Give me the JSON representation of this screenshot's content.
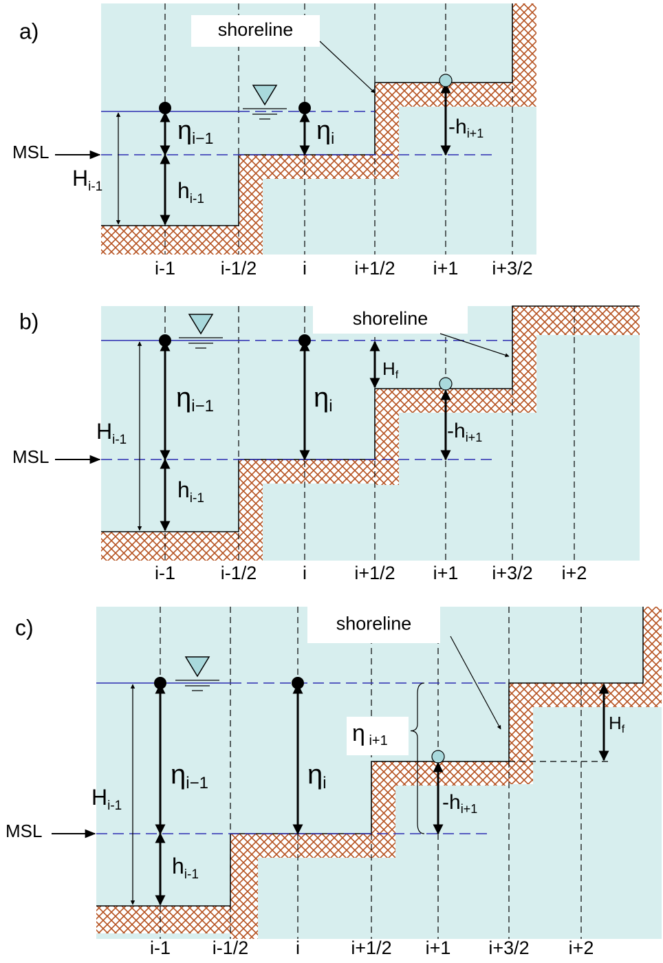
{
  "panels": [
    {
      "label": "a)",
      "shoreline": "shoreline",
      "msl": "MSL",
      "columns": [
        "i-1",
        "i-1/2",
        "i",
        "i+1/2",
        "i+1",
        "i+3/2"
      ],
      "symbols": [
        {
          "base": "η",
          "sub": "i−1"
        },
        {
          "base": "η",
          "sub": "i"
        },
        {
          "base": "h",
          "sub": "i-1"
        },
        {
          "base": "H",
          "sub": "i-1"
        },
        {
          "base": "-h",
          "sub": "i+1"
        }
      ]
    },
    {
      "label": "b)",
      "shoreline": "shoreline",
      "msl": "MSL",
      "columns": [
        "i-1",
        "i-1/2",
        "i",
        "i+1/2",
        "i+1",
        "i+3/2",
        "i+2"
      ],
      "symbols": [
        {
          "base": "η",
          "sub": "i−1"
        },
        {
          "base": "η",
          "sub": "i"
        },
        {
          "base": "h",
          "sub": "i-1"
        },
        {
          "base": "H",
          "sub": "i-1"
        },
        {
          "base": "-h",
          "sub": "i+1"
        },
        {
          "base": "H",
          "sub": "f"
        }
      ]
    },
    {
      "label": "c)",
      "shoreline": "shoreline",
      "msl": "MSL",
      "columns": [
        "i-1",
        "i-1/2",
        "i",
        "i+1/2",
        "i+1",
        "i+3/2",
        "i+2"
      ],
      "symbols": [
        {
          "base": "η",
          "sub": "i−1"
        },
        {
          "base": "η",
          "sub": "i"
        },
        {
          "base": "h",
          "sub": "i-1"
        },
        {
          "base": "H",
          "sub": "i-1"
        },
        {
          "base": "-h",
          "sub": "i+1"
        },
        {
          "base": "H",
          "sub": "f"
        },
        {
          "base": "η",
          "sub": " i+1"
        }
      ]
    }
  ]
}
